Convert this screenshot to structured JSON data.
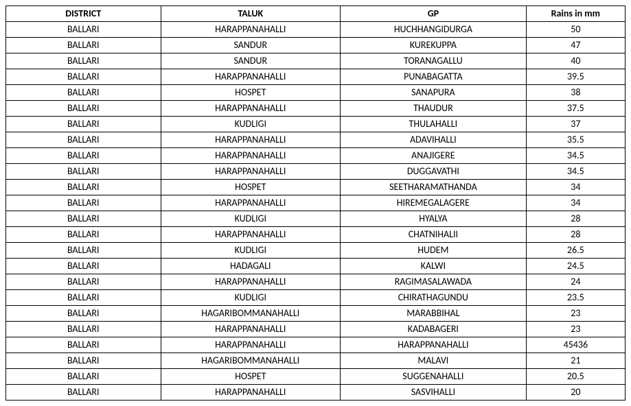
{
  "table": {
    "columns": [
      "DISTRICT",
      "TALUK",
      "GP",
      "Rains in mm"
    ],
    "column_widths": [
      "25%",
      "29%",
      "30%",
      "16%"
    ],
    "header_fontweight": "bold",
    "cell_align": "center",
    "border_color": "#000000",
    "background_color": "#ffffff",
    "text_color": "#000000",
    "font_family": "Calibri",
    "font_size_pt": 11,
    "rows": [
      [
        "BALLARI",
        "HARAPPANAHALLI",
        "HUCHHANGIDURGA",
        "50"
      ],
      [
        "BALLARI",
        "SANDUR",
        "KUREKUPPA",
        "47"
      ],
      [
        "BALLARI",
        "SANDUR",
        "TORANAGALLU",
        "40"
      ],
      [
        "BALLARI",
        "HARAPPANAHALLI",
        "PUNABAGATTA",
        "39.5"
      ],
      [
        "BALLARI",
        "HOSPET",
        "SANAPURA",
        "38"
      ],
      [
        "BALLARI",
        "HARAPPANAHALLI",
        "THAUDUR",
        "37.5"
      ],
      [
        "BALLARI",
        "KUDLIGI",
        "THULAHALLI",
        "37"
      ],
      [
        "BALLARI",
        "HARAPPANAHALLI",
        "ADAVIHALLI",
        "35.5"
      ],
      [
        "BALLARI",
        "HARAPPANAHALLI",
        "ANAJIGERE",
        "34.5"
      ],
      [
        "BALLARI",
        "HARAPPANAHALLI",
        "DUGGAVATHI",
        "34.5"
      ],
      [
        "BALLARI",
        "HOSPET",
        "SEETHARAMATHANDA",
        "34"
      ],
      [
        "BALLARI",
        "HARAPPANAHALLI",
        "HIREMEGALAGERE",
        "34"
      ],
      [
        "BALLARI",
        "KUDLIGI",
        "HYALYA",
        "28"
      ],
      [
        "BALLARI",
        "HARAPPANAHALLI",
        "CHATNIHALII",
        "28"
      ],
      [
        "BALLARI",
        "KUDLIGI",
        "HUDEM",
        "26.5"
      ],
      [
        "BALLARI",
        "HADAGALI",
        "KALWI",
        "24.5"
      ],
      [
        "BALLARI",
        "HARAPPANAHALLI",
        "RAGIMASALAWADA",
        "24"
      ],
      [
        "BALLARI",
        "KUDLIGI",
        "CHIRATHAGUNDU",
        "23.5"
      ],
      [
        "BALLARI",
        "HAGARIBOMMANAHALLI",
        "MARABBIHAL",
        "23"
      ],
      [
        "BALLARI",
        "HARAPPANAHALLI",
        "KADABAGERI",
        "23"
      ],
      [
        "BALLARI",
        "HARAPPANAHALLI",
        "HARAPPANAHALLI",
        "45436"
      ],
      [
        "BALLARI",
        "HAGARIBOMMANAHALLI",
        "MALAVI",
        "21"
      ],
      [
        "BALLARI",
        "HOSPET",
        "SUGGENAHALLI",
        "20.5"
      ],
      [
        "BALLARI",
        "HARAPPANAHALLI",
        "SASVIHALLI",
        "20"
      ]
    ]
  }
}
